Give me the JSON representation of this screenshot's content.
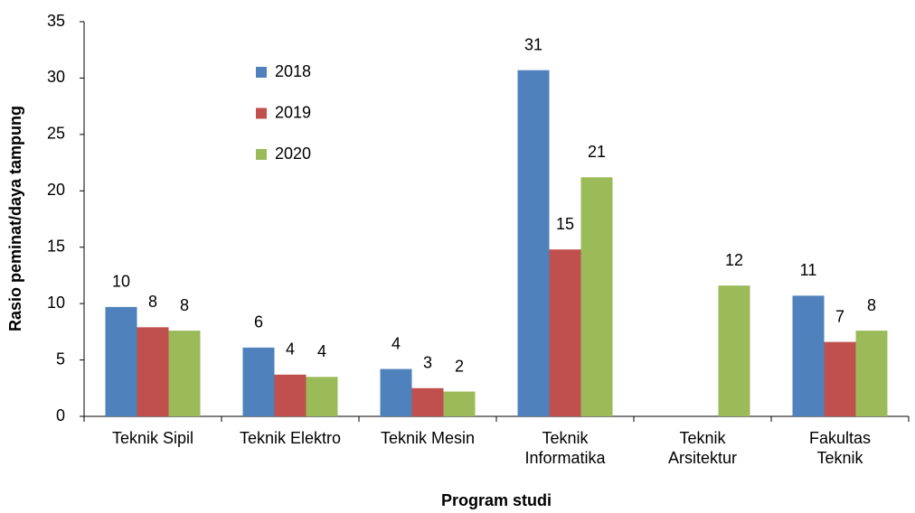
{
  "chart_data": {
    "type": "bar",
    "categories": [
      "Teknik Sipil",
      "Teknik Elektro",
      "Teknik Mesin",
      "Teknik\nInformatika",
      "Teknik\nArsitektur",
      "Fakultas\nTeknik"
    ],
    "series": [
      {
        "name": "2018",
        "color": "#4f81bd",
        "values": [
          9.7,
          6.1,
          4.2,
          30.7,
          null,
          10.7
        ],
        "value_labels": [
          "10",
          "6",
          "4",
          "31",
          null,
          "11"
        ]
      },
      {
        "name": "2019",
        "color": "#c0504d",
        "values": [
          7.9,
          3.7,
          2.5,
          14.8,
          null,
          6.6
        ],
        "value_labels": [
          "8",
          "4",
          "3",
          "15",
          null,
          "7"
        ]
      },
      {
        "name": "2020",
        "color": "#9bbb59",
        "values": [
          7.6,
          3.5,
          2.2,
          21.2,
          11.6,
          7.6
        ],
        "value_labels": [
          "8",
          "4",
          "2",
          "21",
          "12",
          "8"
        ]
      }
    ],
    "xlabel": "Program studi",
    "ylabel": "Rasio peminat/daya tampung",
    "ylim": [
      0,
      35
    ],
    "yticks": [
      0,
      5,
      10,
      15,
      20,
      25,
      30,
      35
    ],
    "legend": "upper left"
  }
}
